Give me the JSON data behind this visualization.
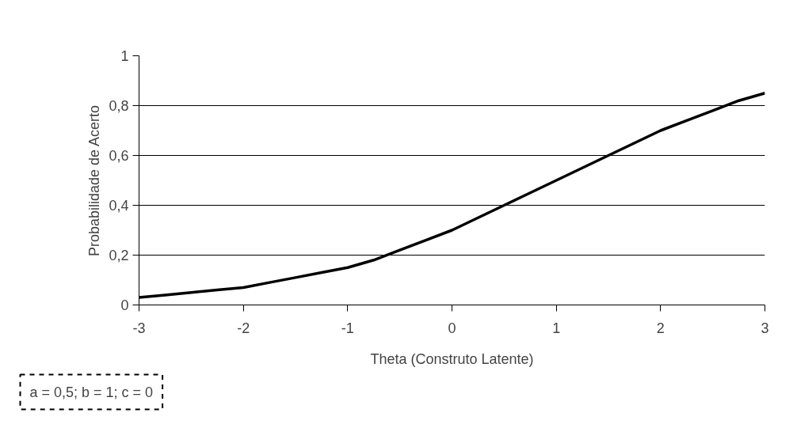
{
  "chart_data": {
    "type": "line",
    "xlabel": "Theta (Construto Latente)",
    "ylabel": "Probabilidade de Acerto",
    "x": [
      -3,
      -2.75,
      -2.5,
      -2.25,
      -2,
      -1.75,
      -1.5,
      -1.25,
      -1,
      -0.75,
      -0.5,
      -0.25,
      0,
      0.25,
      0.5,
      0.75,
      1,
      1.25,
      1.5,
      1.75,
      2,
      2.25,
      2.5,
      2.75,
      3
    ],
    "series": [
      {
        "color": "#000000",
        "values": [
          0.03,
          0.04,
          0.05,
          0.06,
          0.07,
          0.09,
          0.11,
          0.13,
          0.15,
          0.18,
          0.22,
          0.26,
          0.3,
          0.35,
          0.4,
          0.45,
          0.5,
          0.55,
          0.6,
          0.65,
          0.7,
          0.74,
          0.78,
          0.82,
          0.85
        ]
      }
    ],
    "xlim": [
      -3,
      3
    ],
    "xticks": [
      -3,
      -2,
      -1,
      0,
      1,
      2,
      3
    ],
    "ylim": [
      0,
      1
    ],
    "yticks": [
      0,
      {
        "value": 0.2,
        "label": "0,2"
      },
      {
        "value": 0.4,
        "label": "0,4"
      },
      {
        "value": 0.6,
        "label": "0,6"
      },
      {
        "value": 0.8,
        "label": "0,8"
      },
      1
    ],
    "grid": "y",
    "marker": "none",
    "line_style": "solid",
    "annotations": [
      "a = 0,5; b = 1; c = 0"
    ]
  }
}
